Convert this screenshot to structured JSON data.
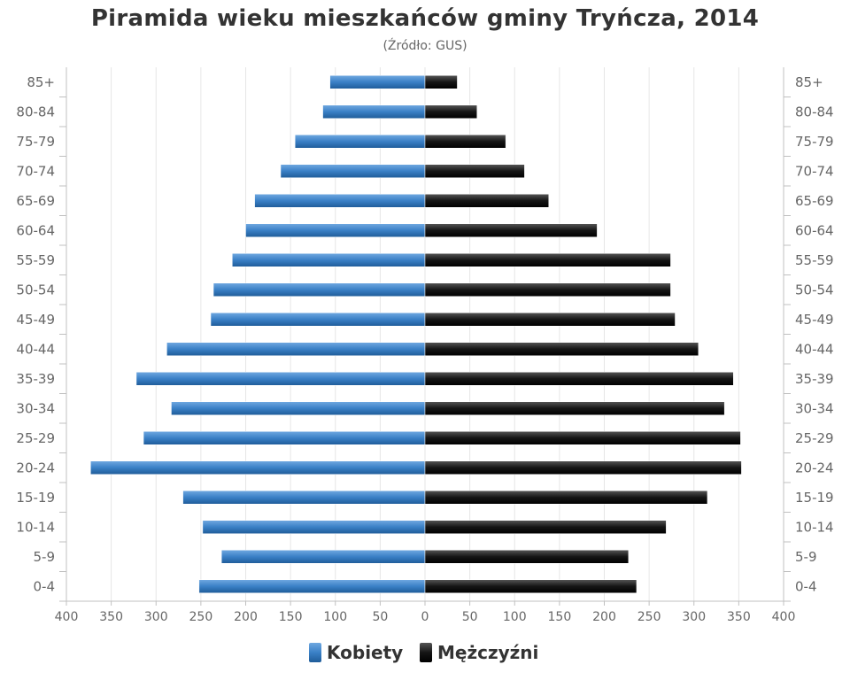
{
  "chart_data": {
    "type": "bar",
    "orientation": "horizontal",
    "layout": "population-pyramid",
    "title": "Piramida wieku mieszkańców gminy Tryńcza, 2014",
    "subtitle": "(Źródło: GUS)",
    "categories": [
      "0-4",
      "5-9",
      "10-14",
      "15-19",
      "20-24",
      "25-29",
      "30-34",
      "35-39",
      "40-44",
      "45-49",
      "50-54",
      "55-59",
      "60-64",
      "65-69",
      "70-74",
      "75-79",
      "80-84",
      "85+"
    ],
    "xlim": [
      -400,
      400
    ],
    "x_ticks": [
      -400,
      -350,
      -300,
      -250,
      -200,
      -150,
      -100,
      -50,
      0,
      50,
      100,
      150,
      200,
      250,
      300,
      350,
      400
    ],
    "x_tick_labels": [
      "400",
      "350",
      "300",
      "250",
      "200",
      "150",
      "100",
      "50",
      "0",
      "50",
      "100",
      "150",
      "200",
      "250",
      "300",
      "350",
      "400"
    ],
    "grid": true,
    "legend_position": "bottom",
    "series": [
      {
        "name": "Kobiety",
        "color": "#3a80c6",
        "side": "left",
        "values": [
          252,
          227,
          248,
          270,
          373,
          314,
          283,
          322,
          288,
          239,
          236,
          215,
          200,
          190,
          161,
          145,
          114,
          106
        ]
      },
      {
        "name": "Mężczyźni",
        "color": "#111111",
        "side": "right",
        "values": [
          236,
          227,
          269,
          315,
          353,
          352,
          334,
          344,
          305,
          279,
          274,
          274,
          192,
          138,
          111,
          90,
          58,
          36
        ]
      }
    ]
  }
}
